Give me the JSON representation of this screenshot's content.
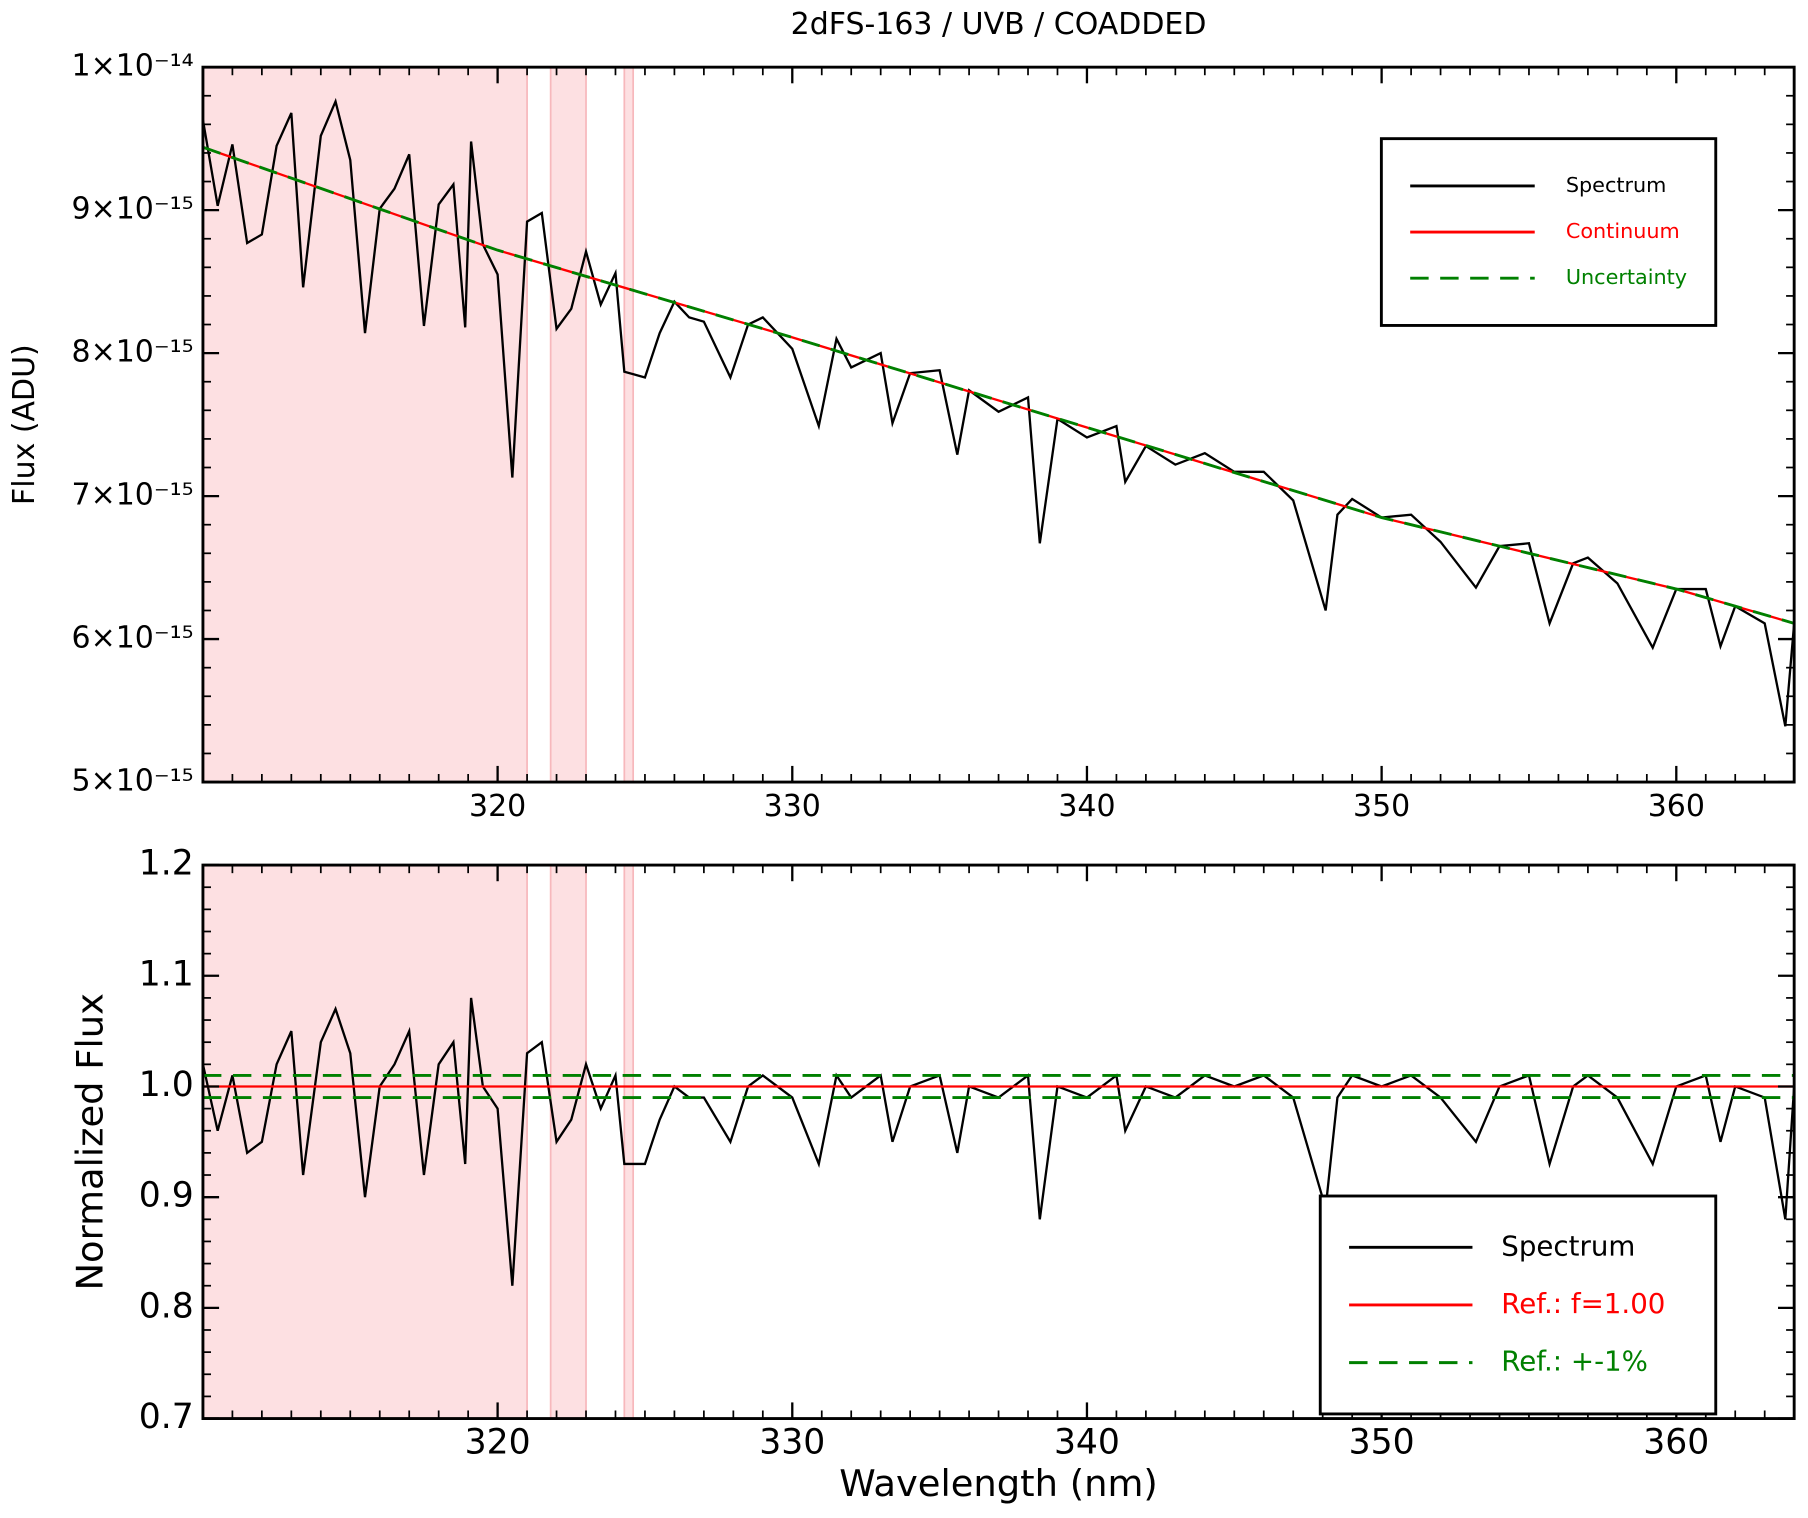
{
  "chart_data": [
    {
      "type": "line",
      "title": "2dFS-163 / UVB / COADDED",
      "ylabel": "Flux (ADU)",
      "xlim": [
        310,
        364
      ],
      "ylim": [
        5e-15,
        1e-14
      ],
      "xticks": [
        320,
        330,
        340,
        350,
        360
      ],
      "yticks": [
        {
          "value": 5e-15,
          "label": "5×10⁻¹⁵"
        },
        {
          "value": 6e-15,
          "label": "6×10⁻¹⁵"
        },
        {
          "value": 7e-15,
          "label": "7×10⁻¹⁵"
        },
        {
          "value": 8e-15,
          "label": "8×10⁻¹⁵"
        },
        {
          "value": 9e-15,
          "label": "9×10⁻¹⁵"
        },
        {
          "value": 1e-14,
          "label": "1×10⁻¹⁴"
        }
      ],
      "shaded_regions": [
        [
          310,
          321
        ],
        [
          321.8,
          323
        ],
        [
          324.3,
          324.6
        ]
      ],
      "shade_color": "#fde0e2",
      "legend": "upper right",
      "series": [
        {
          "name": "Spectrum",
          "color": "#000000",
          "style": "solid",
          "x": [
            310,
            310.5,
            311,
            311.5,
            312,
            312.5,
            313,
            313.4,
            314,
            314.5,
            315,
            315.5,
            316,
            316.5,
            317,
            317.5,
            318,
            318.5,
            318.9,
            319.1,
            319.5,
            320,
            320.5,
            321,
            321.5,
            322,
            322.5,
            323,
            323.5,
            324,
            324.3,
            325,
            325.5,
            326,
            326.5,
            327,
            327.9,
            328.5,
            329,
            330,
            330.9,
            331.5,
            332,
            333,
            333.4,
            334,
            335,
            335.6,
            336,
            337,
            338,
            338.4,
            339,
            340,
            341,
            341.3,
            342,
            343,
            344,
            345,
            346,
            347,
            348.1,
            348.5,
            349,
            350,
            351,
            352,
            353.2,
            354,
            355,
            355.7,
            356.5,
            357,
            358,
            359.2,
            360,
            361,
            361.5,
            362,
            363,
            363.7,
            364
          ],
          "values": [
            9.63e-15,
            9.03e-15,
            9.46e-15,
            8.77e-15,
            8.83e-15,
            9.45e-15,
            9.68e-15,
            8.46e-15,
            9.52e-15,
            9.76e-15,
            9.35e-15,
            8.14e-15,
            9.01e-15,
            9.15e-15,
            9.39e-15,
            8.19e-15,
            9.04e-15,
            9.18e-15,
            8.18e-15,
            9.48e-15,
            8.76e-15,
            8.55e-15,
            7.13e-15,
            8.92e-15,
            8.98e-15,
            8.17e-15,
            8.31e-15,
            8.71e-15,
            8.34e-15,
            8.56e-15,
            7.87e-15,
            7.83e-15,
            8.14e-15,
            8.36e-15,
            8.25e-15,
            8.22e-15,
            7.83e-15,
            8.2e-15,
            8.25e-15,
            8.03e-15,
            7.49e-15,
            8.1e-15,
            7.9e-15,
            8e-15,
            7.51e-15,
            7.86e-15,
            7.88e-15,
            7.29e-15,
            7.74e-15,
            7.59e-15,
            7.69e-15,
            6.67e-15,
            7.54e-15,
            7.41e-15,
            7.49e-15,
            7.1e-15,
            7.35e-15,
            7.22e-15,
            7.3e-15,
            7.17e-15,
            7.17e-15,
            6.97e-15,
            6.2e-15,
            6.87e-15,
            6.98e-15,
            6.85e-15,
            6.87e-15,
            6.68e-15,
            6.36e-15,
            6.65e-15,
            6.67e-15,
            6.11e-15,
            6.53e-15,
            6.57e-15,
            6.39e-15,
            5.94e-15,
            6.35e-15,
            6.35e-15,
            5.95e-15,
            6.23e-15,
            6.11e-15,
            5.39e-15,
            6.11e-15
          ]
        },
        {
          "name": "Continuum",
          "color": "#ff0000",
          "style": "solid",
          "x": [
            310,
            320,
            330,
            340,
            350,
            360,
            364
          ],
          "values": [
            9.44e-15,
            8.72e-15,
            8.11e-15,
            7.48e-15,
            6.85e-15,
            6.35e-15,
            6.11e-15
          ]
        },
        {
          "name": "Uncertainty",
          "color": "#008000",
          "style": "dashed",
          "x": [
            310,
            320,
            330,
            340,
            350,
            360,
            364
          ],
          "values": [
            9.44e-15,
            8.72e-15,
            8.11e-15,
            7.48e-15,
            6.85e-15,
            6.35e-15,
            6.11e-15
          ]
        }
      ]
    },
    {
      "type": "line",
      "ylabel": "Normalized Flux",
      "xlabel": "Wavelength (nm)",
      "xlim": [
        310,
        364
      ],
      "ylim": [
        0.7,
        1.2
      ],
      "xticks": [
        320,
        330,
        340,
        350,
        360
      ],
      "yticks": [
        0.7,
        0.8,
        0.9,
        {
          "value": 1,
          "label": "1.0"
        },
        1.1,
        1.2
      ],
      "shaded_regions": [
        [
          310,
          321
        ],
        [
          321.8,
          323
        ],
        [
          324.3,
          324.6
        ]
      ],
      "shade_color": "#fde0e2",
      "legend": "lower right",
      "series": [
        {
          "name": "Spectrum",
          "color": "#000000",
          "style": "solid",
          "x": [
            310,
            310.5,
            311,
            311.5,
            312,
            312.5,
            313,
            313.4,
            314,
            314.5,
            315,
            315.5,
            316,
            316.5,
            317,
            317.5,
            318,
            318.5,
            318.9,
            319.1,
            319.5,
            320,
            320.5,
            321,
            321.5,
            322,
            322.5,
            323,
            323.5,
            324,
            324.3,
            325,
            325.5,
            326,
            326.5,
            327,
            327.9,
            328.5,
            329,
            330,
            330.9,
            331.5,
            332,
            333,
            333.4,
            334,
            335,
            335.6,
            336,
            337,
            338,
            338.4,
            339,
            340,
            341,
            341.3,
            342,
            343,
            344,
            345,
            346,
            347,
            348.1,
            348.5,
            349,
            350,
            351,
            352,
            353.2,
            354,
            355,
            355.7,
            356.5,
            357,
            358,
            359.2,
            360,
            361,
            361.5,
            362,
            363,
            363.7,
            364
          ],
          "values": [
            1.02,
            0.96,
            1.01,
            0.94,
            0.95,
            1.02,
            1.05,
            0.92,
            1.04,
            1.07,
            1.03,
            0.9,
            1,
            1.02,
            1.05,
            0.92,
            1.02,
            1.04,
            0.93,
            1.08,
            1,
            0.98,
            0.82,
            1.03,
            1.04,
            0.95,
            0.97,
            1.02,
            0.98,
            1.01,
            0.93,
            0.93,
            0.97,
            1,
            0.99,
            0.99,
            0.95,
            1,
            1.01,
            0.99,
            0.93,
            1.01,
            0.99,
            1.01,
            0.95,
            1,
            1.01,
            0.94,
            1,
            0.99,
            1.01,
            0.88,
            1,
            0.99,
            1.01,
            0.96,
            1,
            0.99,
            1.01,
            1,
            1.01,
            0.99,
            0.89,
            0.99,
            1.01,
            1,
            1.01,
            0.99,
            0.95,
            1,
            1.01,
            0.93,
            1,
            1.01,
            0.99,
            0.93,
            1,
            1.01,
            0.95,
            1,
            0.99,
            0.88,
            1
          ]
        },
        {
          "name": "Ref.: f=1.00",
          "color": "#ff0000",
          "style": "solid",
          "x": [
            310,
            364
          ],
          "values": [
            1,
            1
          ]
        },
        {
          "name": "Ref.: +-1%",
          "color": "#008000",
          "style": "dashed",
          "x": [
            310,
            364
          ],
          "values": [
            1.01,
            1.01
          ],
          "lower_values": [
            0.99,
            0.99
          ]
        }
      ]
    }
  ]
}
